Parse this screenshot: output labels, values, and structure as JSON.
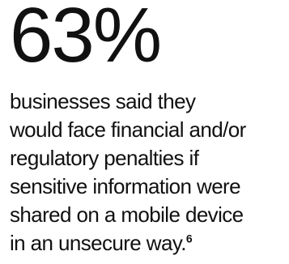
{
  "statistic": {
    "value": "63%",
    "line1": "businesses said they",
    "line2": "would face financial and/or",
    "line3": "regulatory penalties if",
    "line4": "sensitive information were",
    "line5": "shared on a mobile device",
    "line6": "in an unsecure way.",
    "footnote_marker": "6"
  }
}
